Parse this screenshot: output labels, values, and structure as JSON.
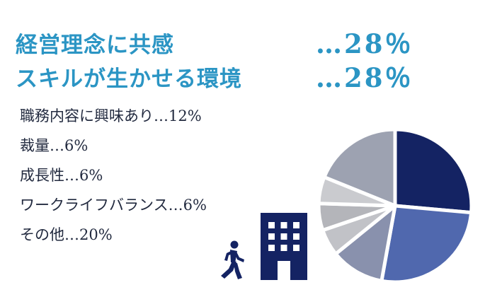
{
  "colors": {
    "accent": "#2b95c4",
    "text": "#222a3f",
    "navy": "#142363"
  },
  "headlines": [
    {
      "label": "経営理念に共感",
      "value": "…28％"
    },
    {
      "label": "スキルが生かせる環境",
      "value": "…28％"
    }
  ],
  "others": [
    {
      "text": "職務内容に興味あり…12%"
    },
    {
      "text": "裁量…6%"
    },
    {
      "text": "成長性…6%"
    },
    {
      "text": "ワークライフバランス…6%"
    },
    {
      "text": "その他…20%"
    }
  ],
  "icons": {
    "walker": "person-walking-icon",
    "building": "office-building-icon"
  },
  "chart_data": {
    "type": "pie",
    "categories": [
      "経営理念に共感",
      "スキルが生かせる環境",
      "職務内容に興味あり",
      "裁量",
      "成長性",
      "ワークライフバランス",
      "その他"
    ],
    "values": [
      28,
      28,
      12,
      6,
      6,
      6,
      20
    ],
    "colors": [
      "#142363",
      "#5068ae",
      "#8991ad",
      "#c1c2c7",
      "#b4b5ba",
      "#cacbcf",
      "#9da2b1"
    ],
    "start_angle": "12 o'clock",
    "direction": "clockwise",
    "legend": "none"
  }
}
